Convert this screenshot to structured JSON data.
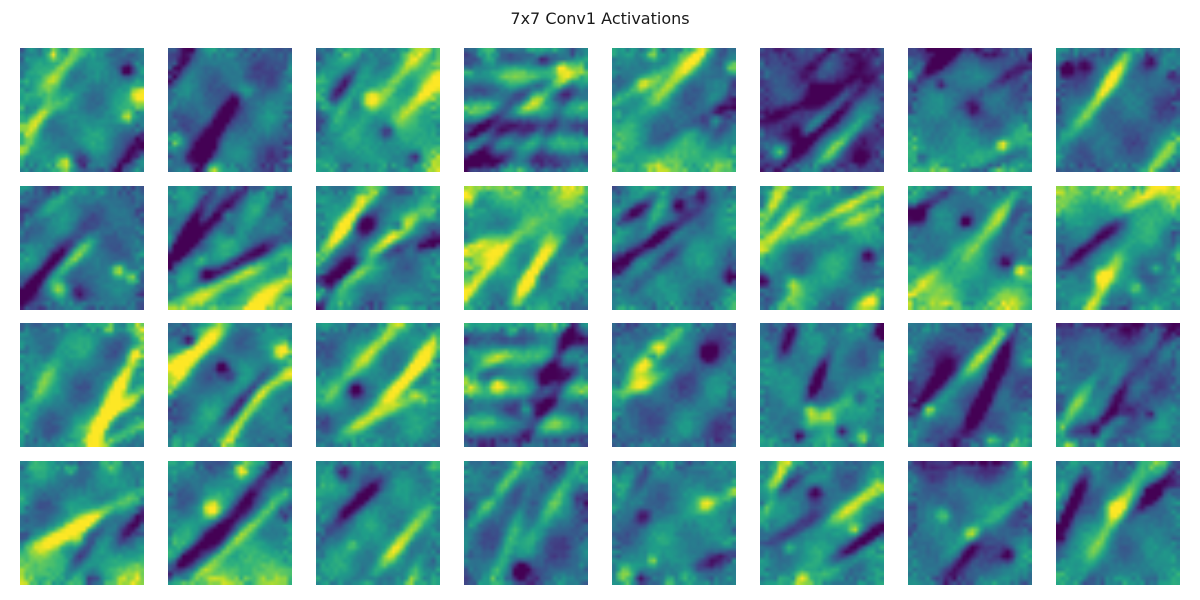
{
  "title": "7x7 Conv1 Activations",
  "grid": {
    "rows": 4,
    "cols": 8
  },
  "colormap": {
    "name": "viridis",
    "stops": [
      "#440154",
      "#482878",
      "#3e4a89",
      "#31688e",
      "#26828e",
      "#1f9e89",
      "#35b779",
      "#6ece58",
      "#b5de2b",
      "#fde725"
    ]
  },
  "maps": [
    {
      "seed": 11,
      "style": "blobs"
    },
    {
      "seed": 23,
      "style": "dark"
    },
    {
      "seed": 37,
      "style": "bright-right"
    },
    {
      "seed": 41,
      "style": "horizontal"
    },
    {
      "seed": 53,
      "style": "bright-bottom"
    },
    {
      "seed": 67,
      "style": "darkest"
    },
    {
      "seed": 71,
      "style": "dark-top-bright-bottom"
    },
    {
      "seed": 83,
      "style": "dark"
    },
    {
      "seed": 97,
      "style": "dark"
    },
    {
      "seed": 101,
      "style": "bright-bottom"
    },
    {
      "seed": 113,
      "style": "blobs"
    },
    {
      "seed": 127,
      "style": "bright-top"
    },
    {
      "seed": 131,
      "style": "mixed"
    },
    {
      "seed": 149,
      "style": "mixed"
    },
    {
      "seed": 151,
      "style": "bright-bottom"
    },
    {
      "seed": 163,
      "style": "bright-top"
    },
    {
      "seed": 173,
      "style": "mixed"
    },
    {
      "seed": 181,
      "style": "mixed"
    },
    {
      "seed": 191,
      "style": "mixed"
    },
    {
      "seed": 197,
      "style": "horizontal"
    },
    {
      "seed": 211,
      "style": "dark"
    },
    {
      "seed": 223,
      "style": "blobs"
    },
    {
      "seed": 227,
      "style": "dark"
    },
    {
      "seed": 233,
      "style": "dark-top"
    },
    {
      "seed": 239,
      "style": "bright-bottom"
    },
    {
      "seed": 241,
      "style": "bright-bottom"
    },
    {
      "seed": 251,
      "style": "mixed"
    },
    {
      "seed": 257,
      "style": "dark"
    },
    {
      "seed": 263,
      "style": "blobs"
    },
    {
      "seed": 269,
      "style": "mixed"
    },
    {
      "seed": 271,
      "style": "dark-top"
    },
    {
      "seed": 277,
      "style": "mixed"
    }
  ]
}
